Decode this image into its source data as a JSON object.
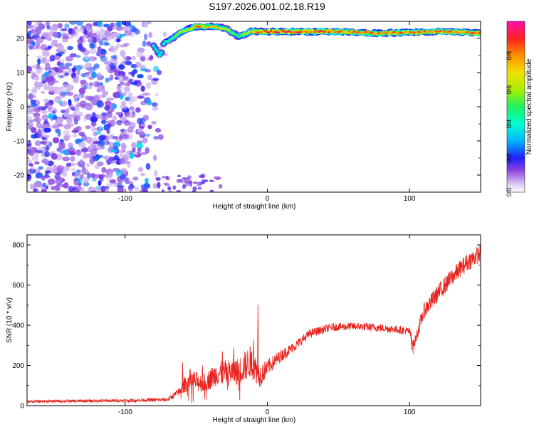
{
  "page": {
    "title": "S197.2026.001.02.18.R19"
  },
  "colors": {
    "background": "#ffffff",
    "axes": "#000000",
    "snr_line": "#e8231d",
    "palette": [
      "#ffffff",
      "#cfb6f0",
      "#9a5ee6",
      "#6a14d4",
      "#2a20ff",
      "#00b4ff",
      "#22ee88",
      "#e8e000",
      "#ff9a00",
      "#ff2020",
      "#ff10b0"
    ]
  },
  "chart_data": [
    {
      "type": "heatmap",
      "xlabel": "Height of straight line (km)",
      "ylabel": "Frequency (Hz)",
      "xlim": [
        -169,
        150
      ],
      "ylim": [
        -25,
        25
      ],
      "x_ticks": [
        -100,
        0,
        100
      ],
      "x_tick_labels": [
        "-100",
        "0",
        "100"
      ],
      "y_ticks": [
        -20,
        -10,
        0,
        10,
        20
      ],
      "y_tick_labels": [
        "-20",
        "-10",
        "0",
        "10",
        "20"
      ],
      "grid": false,
      "colorbar": {
        "label": "Normalized spectral amplitude",
        "range": [
          0,
          1
        ],
        "ticks": [
          0,
          0.2,
          0.4,
          0.6,
          0.8
        ],
        "tick_labels": [
          "0.0",
          "0.2",
          "0.4",
          "0.6",
          "0.8"
        ],
        "position": "right"
      },
      "features": {
        "noise_region_x": [
          -169,
          -70
        ],
        "noise_amplitude": [
          0.05,
          0.25
        ],
        "ridge": [
          {
            "x": -80,
            "y": 18,
            "amp": 0.45
          },
          {
            "x": -75,
            "y": 14.5,
            "amp": 0.5
          },
          {
            "x": -73,
            "y": 18.5,
            "amp": 0.45
          },
          {
            "x": -67,
            "y": 20,
            "amp": 0.5
          },
          {
            "x": -60,
            "y": 22,
            "amp": 0.65
          },
          {
            "x": -50,
            "y": 23.5,
            "amp": 0.85
          },
          {
            "x": -40,
            "y": 23.5,
            "amp": 0.75
          },
          {
            "x": -30,
            "y": 23,
            "amp": 0.7
          },
          {
            "x": -20,
            "y": 20.5,
            "amp": 0.5
          },
          {
            "x": -12,
            "y": 22,
            "amp": 0.75
          },
          {
            "x": 0,
            "y": 22,
            "amp": 0.95
          },
          {
            "x": 25,
            "y": 22,
            "amp": 0.9
          },
          {
            "x": 50,
            "y": 22,
            "amp": 0.85
          },
          {
            "x": 75,
            "y": 21.5,
            "amp": 0.85
          },
          {
            "x": 100,
            "y": 21.8,
            "amp": 0.85
          },
          {
            "x": 125,
            "y": 22,
            "amp": 0.85
          },
          {
            "x": 150,
            "y": 21.5,
            "amp": 0.9
          }
        ]
      }
    },
    {
      "type": "line",
      "xlabel": "Height of straight line (km)",
      "ylabel": "SNR (10 * v/v)",
      "xlim": [
        -169,
        150
      ],
      "ylim": [
        0,
        850
      ],
      "x_ticks": [
        -100,
        0,
        100
      ],
      "x_tick_labels": [
        "-100",
        "0",
        "100"
      ],
      "y_ticks": [
        0,
        200,
        400,
        600,
        800
      ],
      "y_tick_labels": [
        "0",
        "200",
        "400",
        "600",
        "800"
      ],
      "grid": false,
      "series": [
        {
          "envelope": {
            "x": [
              -169,
              -150,
              -100,
              -70,
              -62,
              -55,
              -45,
              -35,
              -20,
              -12,
              -5,
              0,
              10,
              20,
              30,
              45,
              60,
              75,
              90,
              100,
              103,
              110,
              120,
              130,
              140,
              150
            ],
            "y": [
              20,
              22,
              25,
              30,
              70,
              130,
              110,
              160,
              170,
              220,
              150,
              190,
              250,
              300,
              360,
              390,
              395,
              390,
              380,
              370,
              300,
              470,
              560,
              640,
              710,
              760
            ],
            "noise": [
              6,
              7,
              8,
              10,
              20,
              55,
              45,
              60,
              70,
              80,
              60,
              40,
              30,
              25,
              22,
              20,
              20,
              20,
              20,
              20,
              25,
              40,
              45,
              45,
              45,
              45
            ]
          },
          "spikes": [
            {
              "x": -60,
              "y": 215
            },
            {
              "x": -46,
              "y": 200
            },
            {
              "x": -32,
              "y": 270
            },
            {
              "x": -24,
              "y": 290
            },
            {
              "x": -10,
              "y": 328
            },
            {
              "x": -7,
              "y": 502
            },
            {
              "x": 101,
              "y": 280
            },
            {
              "x": 102,
              "y": 270
            }
          ]
        }
      ]
    }
  ]
}
